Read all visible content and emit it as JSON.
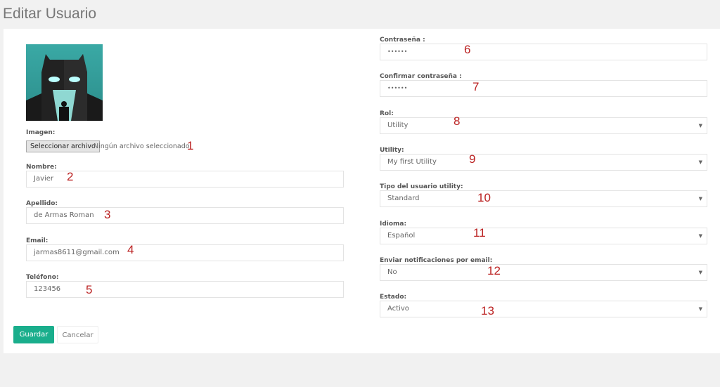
{
  "page_title": "Editar Usuario",
  "left": {
    "image_label": "Imagen:",
    "file_button": "Seleccionar archivo",
    "file_status": "Ningún archivo seleccionado",
    "fields": [
      {
        "label": "Nombre:",
        "value": "Javier"
      },
      {
        "label": "Apellido:",
        "value": "de Armas Roman"
      },
      {
        "label": "Email:",
        "value": "jarmas8611@gmail.com"
      },
      {
        "label": "Teléfono:",
        "value": "123456"
      }
    ]
  },
  "right": {
    "fields": [
      {
        "label": "Contraseña :",
        "value": "••••••",
        "type": "password"
      },
      {
        "label": "Confirmar contraseña :",
        "value": "••••••",
        "type": "password"
      },
      {
        "label": "Rol:",
        "value": "Utility",
        "type": "select"
      },
      {
        "label": "Utility:",
        "value": "My first Utility",
        "type": "select"
      },
      {
        "label": "Tipo del usuario utility:",
        "value": "Standard",
        "type": "select"
      },
      {
        "label": "Idioma:",
        "value": "Español",
        "type": "select"
      },
      {
        "label": "Enviar notificaciones por email:",
        "value": "No",
        "type": "select"
      },
      {
        "label": "Estado:",
        "value": "Activo",
        "type": "select"
      }
    ]
  },
  "annotations": [
    "1",
    "2",
    "3",
    "4",
    "5",
    "6",
    "7",
    "8",
    "9",
    "10",
    "11",
    "12",
    "13"
  ],
  "buttons": {
    "save": "Guardar",
    "cancel": "Cancelar"
  },
  "colors": {
    "accent": "#1aae8c",
    "annotation": "#b22222"
  }
}
